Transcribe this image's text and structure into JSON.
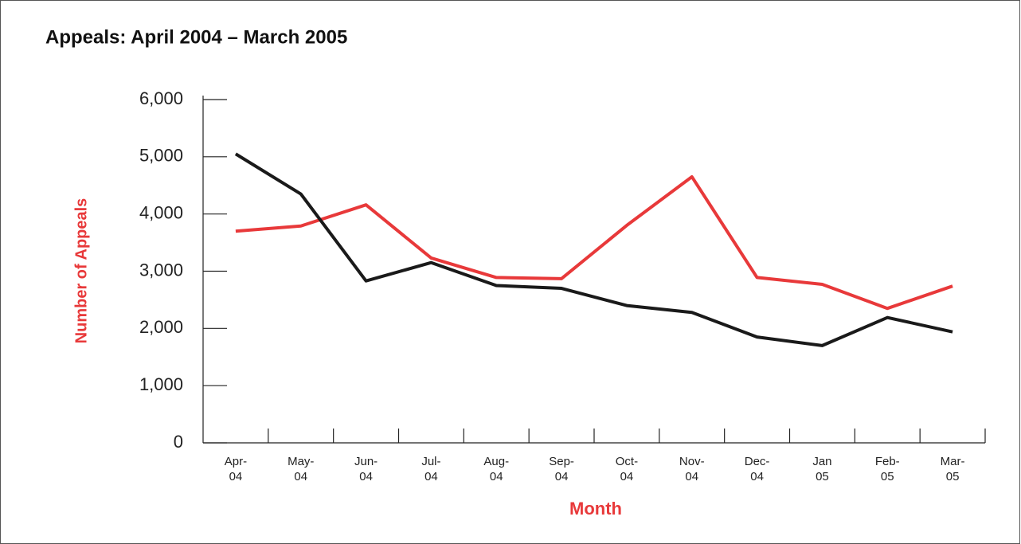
{
  "chart_data": {
    "type": "line",
    "title": "Appeals: April 2004 – March 2005",
    "y_label": "Number of Appeals",
    "x_label": "Month",
    "categories": [
      [
        "Apr-",
        "04"
      ],
      [
        "May-",
        "04"
      ],
      [
        "Jun-",
        "04"
      ],
      [
        "Jul-",
        "04"
      ],
      [
        "Aug-",
        "04"
      ],
      [
        "Sep-",
        "04"
      ],
      [
        "Oct-",
        "04"
      ],
      [
        "Nov-",
        "04"
      ],
      [
        "Dec-",
        "04"
      ],
      [
        "Jan",
        "05"
      ],
      [
        "Feb-",
        "05"
      ],
      [
        "Mar-",
        "05"
      ]
    ],
    "series": [
      {
        "color": "#e8393a",
        "values": [
          3700,
          3790,
          4160,
          3230,
          2890,
          2870,
          3800,
          4650,
          2890,
          2770,
          2350,
          2740
        ]
      },
      {
        "color": "#1a1a1a",
        "values": [
          5050,
          4350,
          2830,
          3150,
          2750,
          2700,
          2400,
          2280,
          1850,
          1700,
          2190,
          1940
        ]
      }
    ],
    "ylim": [
      0,
      6000
    ],
    "yticks": [
      0,
      {
        "value": 1000,
        "label": "1,000"
      },
      {
        "value": 2000,
        "label": "2,000"
      },
      {
        "value": 3000,
        "label": "3,000"
      },
      {
        "value": 4000,
        "label": "4,000"
      },
      {
        "value": 5000,
        "label": "5,000"
      },
      {
        "value": 6000,
        "label": "6,000"
      }
    ],
    "label_color": "#e8393a"
  }
}
